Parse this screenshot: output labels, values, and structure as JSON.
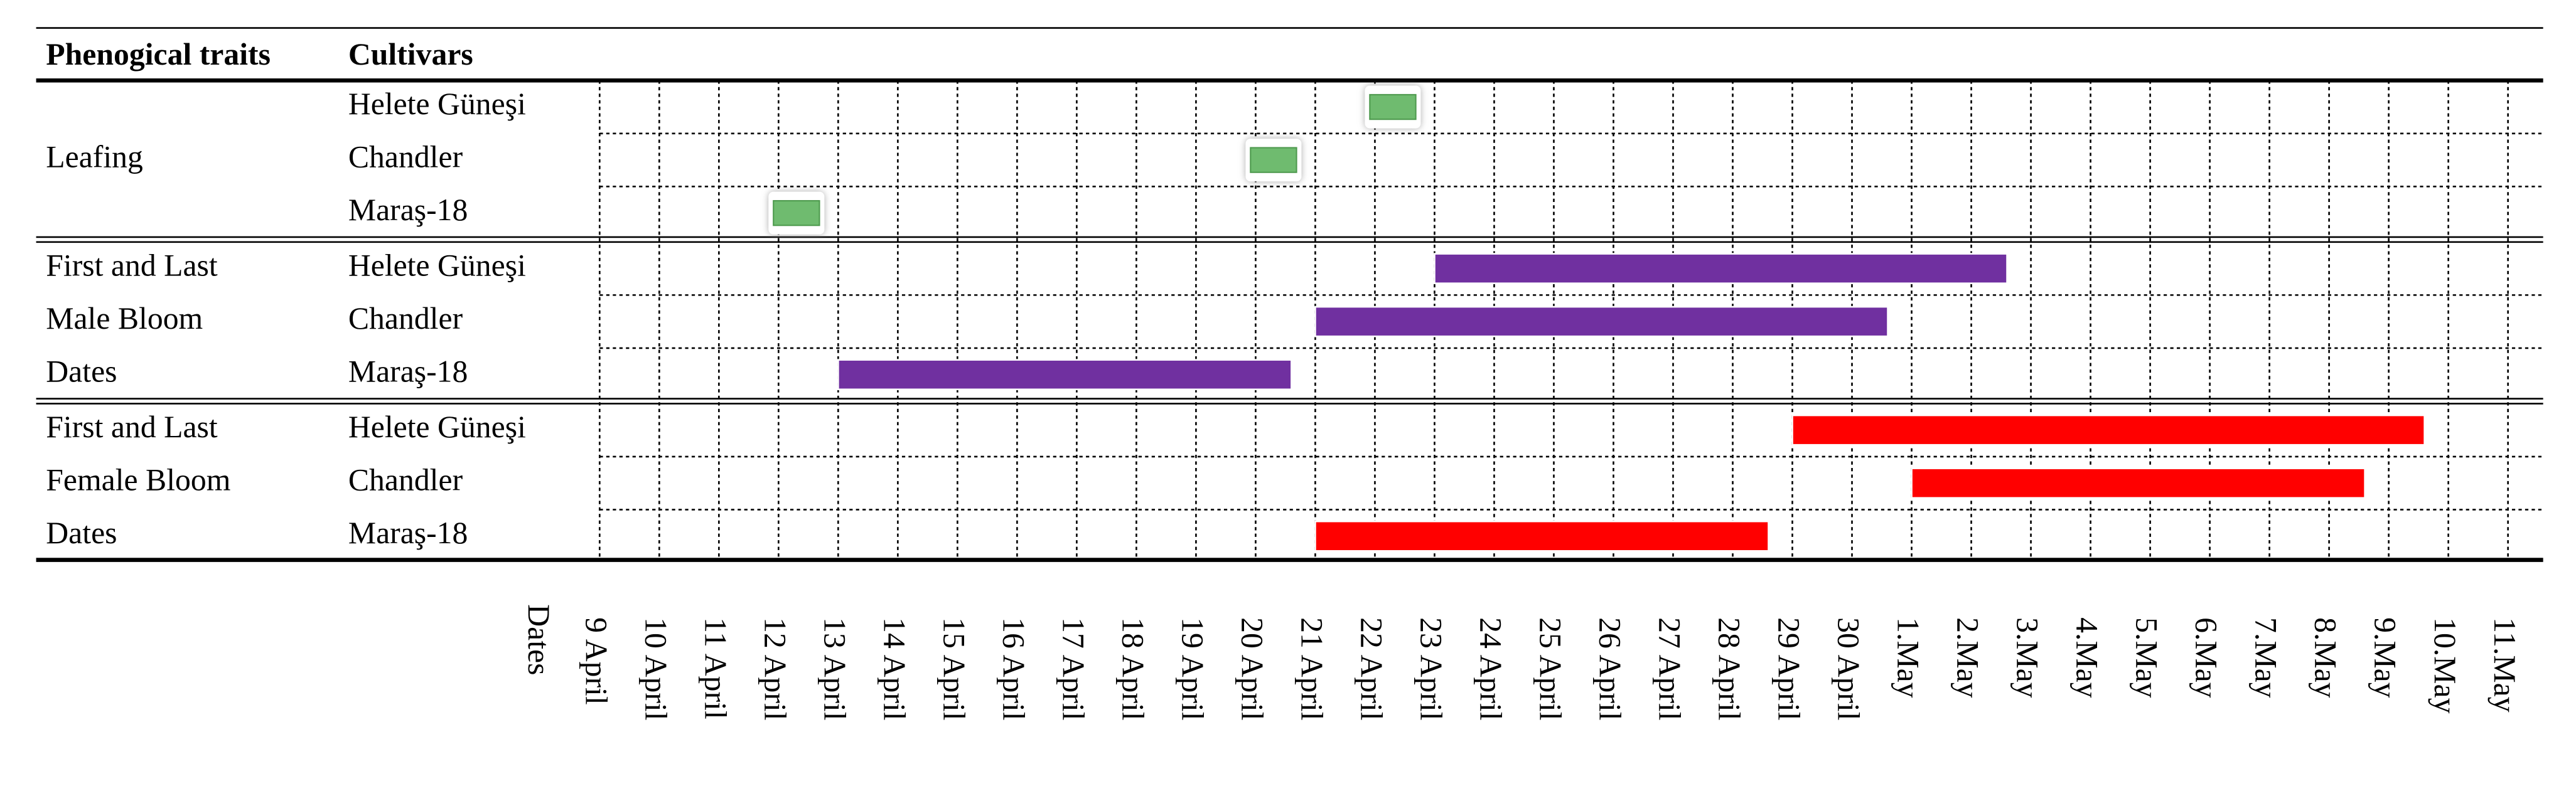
{
  "chart_data": {
    "type": "gantt",
    "headers": [
      "Phenogical traits",
      "Cultivars"
    ],
    "x_label": "Dates",
    "categories": [
      "9 April",
      "10 April",
      "11 April",
      "12 April",
      "13 April",
      "14 April",
      "15 April",
      "16 April",
      "17 April",
      "18 April",
      "19 April",
      "20 April",
      "21 April",
      "22 April",
      "23 April",
      "24 April",
      "25 April",
      "26 April",
      "27 April",
      "28 April",
      "29 April",
      "30 April",
      "1.May",
      "2.May",
      "3.May",
      "4.May",
      "5.May",
      "6.May",
      "7.May",
      "8.May",
      "9.May",
      "10.May",
      "11.May"
    ],
    "groups": [
      {
        "label": [
          "Leafing"
        ],
        "style": "marker",
        "color": "#6fbb6f",
        "rows": [
          {
            "name": "Helete Güneşi",
            "date": "22 April"
          },
          {
            "name": "Chandler",
            "date": "20 April"
          },
          {
            "name": "Maraş-18",
            "date": "12 April"
          }
        ]
      },
      {
        "label": [
          "First and Last",
          "Male Bloom",
          "Dates"
        ],
        "style": "bar",
        "color": "#7030a0",
        "rows": [
          {
            "name": "Helete Güneşi",
            "start": "23 April",
            "end": "2.May"
          },
          {
            "name": "Chandler",
            "start": "21 April",
            "end": "30 April"
          },
          {
            "name": "Maraş-18",
            "start": "13 April",
            "end": "20 April"
          }
        ]
      },
      {
        "label": [
          "First and Last",
          "Female Bloom",
          "Dates"
        ],
        "style": "bar",
        "color": "#ff0000",
        "rows": [
          {
            "name": "Helete Güneşi",
            "start": "29 April",
            "end": "9.May"
          },
          {
            "name": "Chandler",
            "start": "1.May",
            "end": "8.May"
          },
          {
            "name": "Maraş-18",
            "start": "21 April",
            "end": "28 April"
          }
        ]
      }
    ]
  }
}
